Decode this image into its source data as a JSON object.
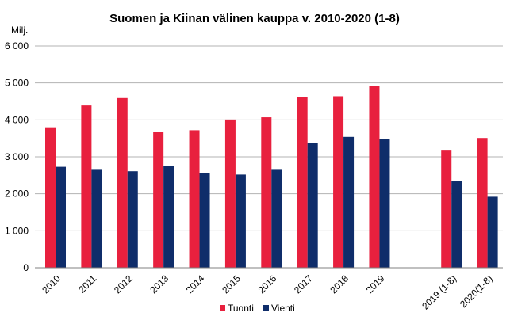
{
  "chart_data": {
    "type": "bar",
    "title": "Suomen ja Kiinan välinen kauppa v. 2010-2020 (1-8)",
    "unit_label": "Milj.",
    "ylim": [
      0,
      6000
    ],
    "yticks": [
      0,
      1000,
      2000,
      3000,
      4000,
      5000,
      6000
    ],
    "ytick_labels": [
      "0",
      "1 000",
      "2 000",
      "3 000",
      "4 000",
      "5 000",
      "6 000"
    ],
    "grid": true,
    "legend_position": "bottom",
    "categories": [
      "2010",
      "2011",
      "2012",
      "2013",
      "2014",
      "2015",
      "2016",
      "2017",
      "2018",
      "2019",
      "",
      "2019 (1-8)",
      "2020(1-8)"
    ],
    "series": [
      {
        "name": "Tuonti",
        "color": "#e8203e",
        "values": [
          3800,
          4390,
          4590,
          3680,
          3720,
          4010,
          4070,
          4610,
          4640,
          4910,
          null,
          3190,
          3510
        ]
      },
      {
        "name": "Vienti",
        "color": "#0f2d6a",
        "values": [
          2730,
          2670,
          2610,
          2760,
          2560,
          2520,
          2670,
          3380,
          3540,
          3490,
          null,
          2350,
          1920
        ]
      }
    ]
  }
}
